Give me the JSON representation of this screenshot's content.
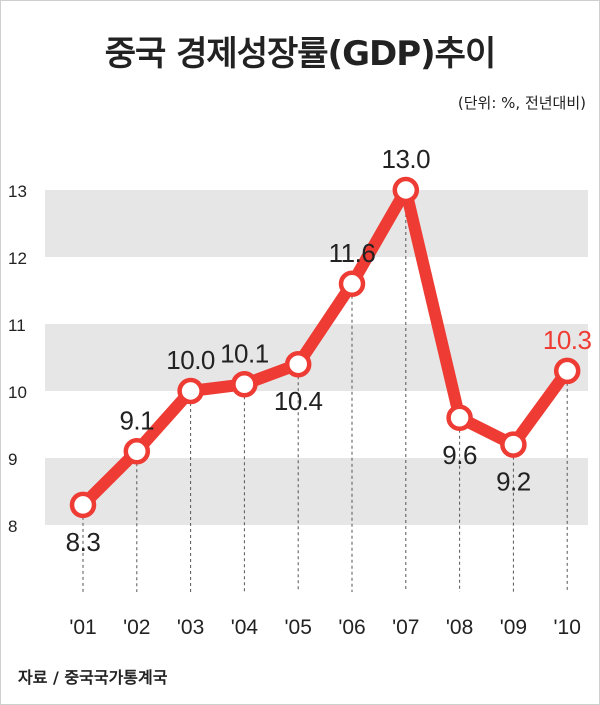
{
  "title": "중국 경제성장률(GDP)추이",
  "unit_note": "(단위: %, 전년대비)",
  "source": "자료 / 중국국가통계국",
  "colors": {
    "line": "#ee3b33",
    "band": "#e6e6e6",
    "highlight_label": "#ee3b33",
    "text": "#222222"
  },
  "chart_data": {
    "type": "line",
    "title": "중국 경제성장률(GDP)추이",
    "xlabel": "",
    "ylabel": "",
    "categories": [
      "'01",
      "'02",
      "'03",
      "'04",
      "'05",
      "'06",
      "'07",
      "'08",
      "'09",
      "'10"
    ],
    "values": [
      8.3,
      9.1,
      10.0,
      10.1,
      10.4,
      11.6,
      13.0,
      9.6,
      9.2,
      10.3
    ],
    "value_labels": [
      "8.3",
      "9.1",
      "10.0",
      "10.1",
      "10.4",
      "11.6",
      "13.0",
      "9.6",
      "9.2",
      "10.3"
    ],
    "label_position": [
      "below",
      "above",
      "above",
      "above",
      "below",
      "above",
      "above",
      "below",
      "below",
      "above"
    ],
    "highlight_index": 9,
    "ylim": [
      8,
      13
    ],
    "yticks": [
      8,
      9,
      10,
      11,
      12,
      13
    ],
    "shaded_bands": [
      [
        9,
        8
      ],
      [
        11,
        10
      ],
      [
        13,
        12
      ]
    ],
    "grid": false,
    "legend": "none"
  }
}
